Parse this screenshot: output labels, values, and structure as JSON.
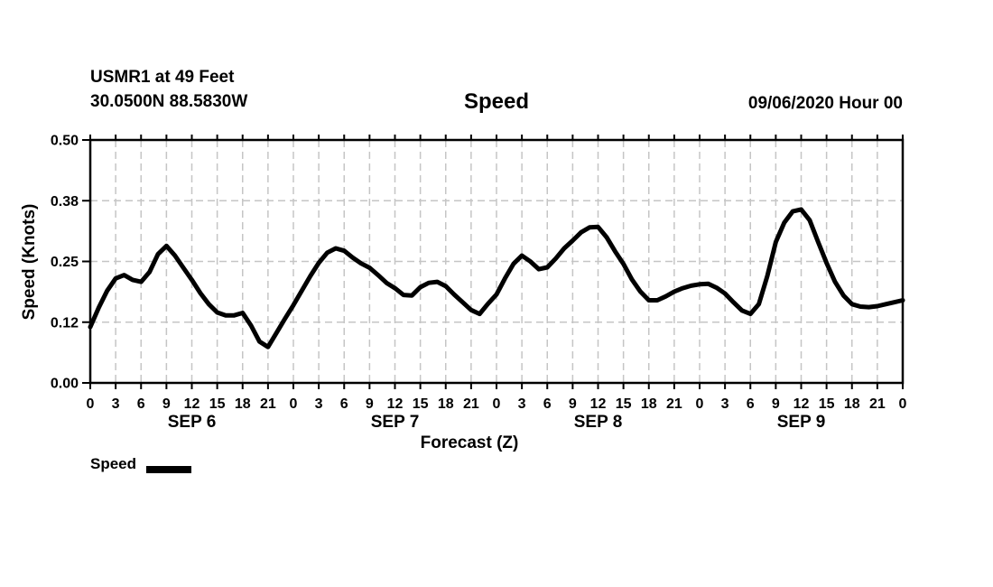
{
  "header": {
    "station_line1": "USMR1 at 49 Feet",
    "station_line2": "30.0500N 88.5830W",
    "datetime": "09/06/2020 Hour 00"
  },
  "legend": {
    "label": "Speed",
    "swatch_color": "#000000"
  },
  "chart_data": {
    "type": "line",
    "title": "Speed",
    "xlabel": "Forecast (Z)",
    "ylabel": "Speed (Knots)",
    "ylim": [
      0.0,
      0.5
    ],
    "grid": true,
    "grid_color": "#c5c5c5",
    "line_color": "#000000",
    "y_ticks": [
      {
        "value": 0.0,
        "label": "0.00"
      },
      {
        "value": 0.125,
        "label": "0.12"
      },
      {
        "value": 0.25,
        "label": "0.25"
      },
      {
        "value": 0.375,
        "label": "0.38"
      },
      {
        "value": 0.5,
        "label": "0.50"
      }
    ],
    "x_hours_start": 0,
    "x_hours_end": 96,
    "x_tick_step_hours": 3,
    "x_tick_labels_pattern": [
      "0",
      "3",
      "6",
      "9",
      "12",
      "15",
      "18",
      "21"
    ],
    "x_tick_label_last": "0",
    "day_labels": [
      "SEP 6",
      "SEP 7",
      "SEP 8",
      "SEP 9"
    ],
    "series": [
      {
        "name": "Speed",
        "x_step_hours": 1,
        "values": [
          0.115,
          0.155,
          0.19,
          0.215,
          0.222,
          0.212,
          0.208,
          0.228,
          0.265,
          0.282,
          0.262,
          0.237,
          0.212,
          0.185,
          0.162,
          0.145,
          0.139,
          0.139,
          0.144,
          0.118,
          0.085,
          0.074,
          0.103,
          0.132,
          0.16,
          0.19,
          0.22,
          0.247,
          0.268,
          0.277,
          0.272,
          0.258,
          0.246,
          0.237,
          0.222,
          0.206,
          0.195,
          0.181,
          0.18,
          0.197,
          0.206,
          0.208,
          0.199,
          0.182,
          0.166,
          0.15,
          0.142,
          0.163,
          0.182,
          0.215,
          0.245,
          0.262,
          0.25,
          0.234,
          0.238,
          0.256,
          0.277,
          0.293,
          0.31,
          0.32,
          0.321,
          0.3,
          0.271,
          0.245,
          0.213,
          0.188,
          0.17,
          0.17,
          0.178,
          0.188,
          0.195,
          0.2,
          0.203,
          0.204,
          0.196,
          0.184,
          0.166,
          0.149,
          0.142,
          0.162,
          0.22,
          0.29,
          0.33,
          0.353,
          0.357,
          0.335,
          0.29,
          0.247,
          0.208,
          0.18,
          0.162,
          0.157,
          0.156,
          0.158,
          0.162,
          0.166,
          0.17
        ]
      }
    ]
  }
}
